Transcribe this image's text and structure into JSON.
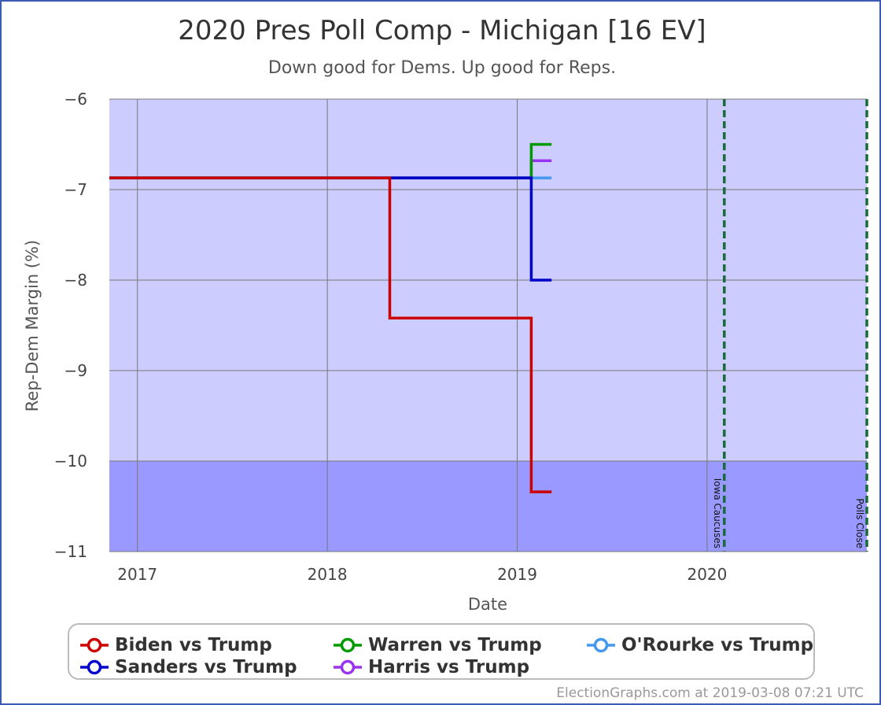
{
  "chart_data": {
    "type": "line",
    "title": "2020 Pres Poll Comp - Michigan [16 EV]",
    "subtitle": "Down good for Dems. Up good for Reps.",
    "xlabel": "Date",
    "ylabel": "Rep-Dem Margin (%)",
    "ylim": [
      -11,
      -6
    ],
    "xlim": [
      "2016-11-08",
      "2020-11-03"
    ],
    "yticks": [
      -6,
      -7,
      -8,
      -9,
      -10,
      -11
    ],
    "ytick_labels": [
      "−6",
      "−7",
      "−8",
      "−9",
      "−10",
      "−11"
    ],
    "xticks": [
      "2017-01-01",
      "2018-01-01",
      "2019-01-01",
      "2020-01-01"
    ],
    "xtick_labels": [
      "2017",
      "2018",
      "2019",
      "2020"
    ],
    "grid": true,
    "bands": [
      {
        "from": -10,
        "to": -6,
        "color": "#ccccff"
      },
      {
        "from": -11,
        "to": -10,
        "color": "#9999ff"
      }
    ],
    "vlines": [
      {
        "date": "2020-02-03",
        "label": "Iowa Caucuses",
        "color": "#1a6b3a"
      },
      {
        "date": "2020-11-03",
        "label": "Polls Close",
        "color": "#1a6b3a"
      }
    ],
    "series": [
      {
        "name": "Biden vs Trump",
        "color": "#cc0000",
        "step": true,
        "points": [
          [
            "2016-11-08",
            -6.87
          ],
          [
            "2018-05-01",
            -8.42
          ],
          [
            "2019-01-28",
            -10.34
          ],
          [
            "2019-03-08",
            -10.34
          ]
        ]
      },
      {
        "name": "Sanders vs Trump",
        "color": "#0000cc",
        "step": true,
        "points": [
          [
            "2016-11-08",
            -6.87
          ],
          [
            "2019-01-28",
            -8.0
          ],
          [
            "2019-03-08",
            -8.0
          ]
        ]
      },
      {
        "name": "Warren vs Trump",
        "color": "#009900",
        "step": true,
        "points": [
          [
            "2016-11-08",
            -6.87
          ],
          [
            "2019-01-28",
            -6.5
          ],
          [
            "2019-03-08",
            -6.5
          ]
        ]
      },
      {
        "name": "O'Rourke vs Trump",
        "color": "#4499ee",
        "step": true,
        "points": [
          [
            "2016-11-08",
            -6.87
          ],
          [
            "2019-01-28",
            -6.87
          ],
          [
            "2019-03-08",
            -6.87
          ]
        ]
      },
      {
        "name": "Harris vs Trump",
        "color": "#9933ee",
        "step": true,
        "points": [
          [
            "2016-11-08",
            -6.87
          ],
          [
            "2019-01-28",
            -6.68
          ],
          [
            "2019-03-08",
            -6.68
          ]
        ]
      }
    ]
  },
  "legend": {
    "items": [
      {
        "label": "Biden vs Trump",
        "color": "#cc0000"
      },
      {
        "label": "Warren vs Trump",
        "color": "#009900"
      },
      {
        "label": "O'Rourke vs Trump",
        "color": "#4499ee"
      },
      {
        "label": "Sanders vs Trump",
        "color": "#0000cc"
      },
      {
        "label": "Harris vs Trump",
        "color": "#9933ee"
      }
    ]
  },
  "credit": "ElectionGraphs.com at 2019-03-08 07:21 UTC"
}
